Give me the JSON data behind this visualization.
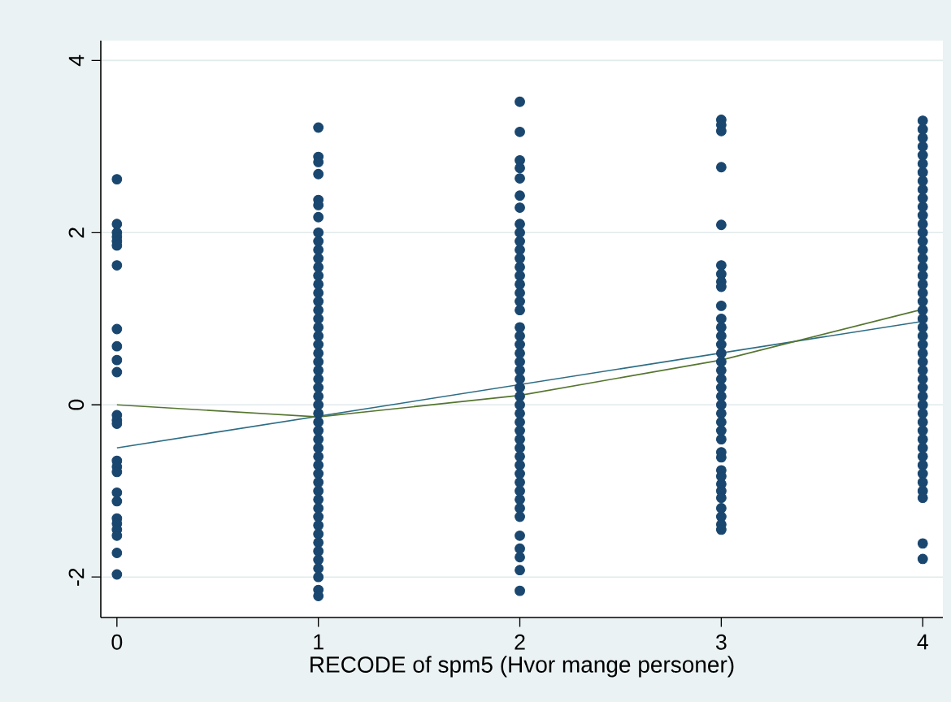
{
  "chart_data": {
    "type": "scatter",
    "xlabel": "RECODE of spm5 (Hvor mange personer)",
    "xlim": [
      -0.08,
      4.1
    ],
    "ylim": [
      -2.47,
      4.23
    ],
    "xticks": [
      0,
      1,
      2,
      3,
      4
    ],
    "yticks": [
      -2,
      0,
      2,
      4
    ],
    "grid": "y",
    "series": [
      {
        "type": "scatter",
        "color": "#1a476f",
        "marker": "circle",
        "x": [
          0,
          0,
          0,
          0,
          0,
          0,
          0,
          0,
          0,
          0,
          0,
          0,
          0,
          0,
          0,
          0,
          0,
          0,
          0,
          0,
          0,
          0,
          0,
          0,
          0,
          1,
          1,
          1,
          1,
          1,
          1,
          1,
          1,
          1,
          1,
          1,
          1,
          1,
          1,
          1,
          1,
          1,
          1,
          1,
          1,
          1,
          1,
          1,
          1,
          1,
          1,
          1,
          1,
          1,
          1,
          1,
          1,
          1,
          1,
          1,
          1,
          1,
          1,
          1,
          1,
          1,
          1,
          1,
          1,
          1,
          1,
          1,
          1,
          1,
          1,
          2,
          2,
          2,
          2,
          2,
          2,
          2,
          2,
          2,
          2,
          2,
          2,
          2,
          2,
          2,
          2,
          2,
          2,
          2,
          2,
          2,
          2,
          2,
          2,
          2,
          2,
          2,
          2,
          2,
          2,
          2,
          2,
          2,
          2,
          2,
          2,
          2,
          2,
          2,
          2,
          2,
          2,
          2,
          2,
          2,
          2,
          3,
          3,
          3,
          3,
          3,
          3,
          3,
          3,
          3,
          3,
          3,
          3,
          3,
          3,
          3,
          3,
          3,
          3,
          3,
          3,
          3,
          3,
          3,
          3,
          3,
          3,
          3,
          3,
          3,
          3,
          3,
          3,
          3,
          3,
          3,
          3,
          4,
          4,
          4,
          4,
          4,
          4,
          4,
          4,
          4,
          4,
          4,
          4,
          4,
          4,
          4,
          4,
          4,
          4,
          4,
          4,
          4,
          4,
          4,
          4,
          4,
          4,
          4,
          4,
          4,
          4,
          4,
          4,
          4,
          4,
          4,
          4,
          4,
          4,
          4,
          4,
          4,
          4,
          4,
          4,
          4,
          4,
          4
        ],
        "values": [
          2.62,
          2.1,
          2.0,
          1.95,
          1.9,
          1.85,
          1.62,
          0.88,
          0.68,
          0.52,
          0.38,
          -0.12,
          -0.18,
          -0.22,
          -0.65,
          -0.72,
          -0.78,
          -1.02,
          -1.12,
          -1.32,
          -1.38,
          -1.45,
          -1.52,
          -1.72,
          -1.97,
          3.22,
          2.88,
          2.82,
          2.68,
          2.38,
          2.32,
          2.18,
          2.0,
          1.9,
          1.8,
          1.7,
          1.6,
          1.5,
          1.4,
          1.3,
          1.2,
          1.1,
          1.0,
          0.9,
          0.8,
          0.7,
          0.6,
          0.5,
          0.4,
          0.3,
          0.2,
          0.1,
          0.0,
          -0.1,
          -0.2,
          -0.3,
          -0.4,
          -0.5,
          -0.6,
          -0.7,
          -0.8,
          -0.9,
          -1.0,
          -1.1,
          -1.2,
          -1.3,
          -1.4,
          -1.5,
          -1.6,
          -1.7,
          -1.8,
          -1.9,
          -2.0,
          -2.15,
          -2.22,
          3.52,
          3.17,
          2.84,
          2.75,
          2.63,
          2.43,
          2.29,
          2.1,
          2.0,
          1.9,
          1.8,
          1.7,
          1.6,
          1.5,
          1.4,
          1.3,
          1.2,
          1.1,
          0.9,
          0.8,
          0.7,
          0.6,
          0.5,
          0.4,
          0.3,
          0.2,
          0.1,
          0.0,
          -0.1,
          -0.2,
          -0.3,
          -0.4,
          -0.5,
          -0.6,
          -0.7,
          -0.8,
          -0.9,
          -1.0,
          -1.1,
          -1.2,
          -1.3,
          -1.52,
          -1.67,
          -1.77,
          -1.92,
          -2.16,
          3.31,
          3.25,
          3.18,
          2.76,
          2.09,
          1.62,
          1.52,
          1.43,
          1.37,
          1.15,
          1.0,
          0.9,
          0.8,
          0.7,
          0.6,
          0.5,
          0.4,
          0.3,
          0.2,
          0.1,
          0.0,
          -0.1,
          -0.2,
          -0.3,
          -0.4,
          -0.55,
          -0.61,
          -0.76,
          -0.83,
          -0.92,
          -1.0,
          -1.08,
          -1.2,
          -1.3,
          -1.39,
          -1.45,
          3.3,
          3.2,
          3.1,
          3.0,
          2.9,
          2.8,
          2.7,
          2.6,
          2.5,
          2.4,
          2.3,
          2.2,
          2.1,
          2.0,
          1.9,
          1.8,
          1.7,
          1.6,
          1.5,
          1.4,
          1.3,
          1.2,
          1.1,
          1.0,
          0.9,
          0.8,
          0.7,
          0.6,
          0.5,
          0.4,
          0.3,
          0.2,
          0.1,
          0.0,
          -0.1,
          -0.2,
          -0.3,
          -0.4,
          -0.5,
          -0.6,
          -0.7,
          -0.8,
          -0.9,
          -1.0,
          -1.08,
          -1.61,
          -1.79
        ]
      },
      {
        "type": "line",
        "color": "#2d6d85",
        "marker": "none",
        "x": [
          0,
          4
        ],
        "values": [
          -0.5,
          0.97
        ]
      },
      {
        "type": "line",
        "color": "#55752f",
        "marker": "none",
        "x": [
          0,
          1,
          2,
          3,
          4
        ],
        "values": [
          0.0,
          -0.14,
          0.11,
          0.52,
          1.11
        ]
      }
    ]
  }
}
